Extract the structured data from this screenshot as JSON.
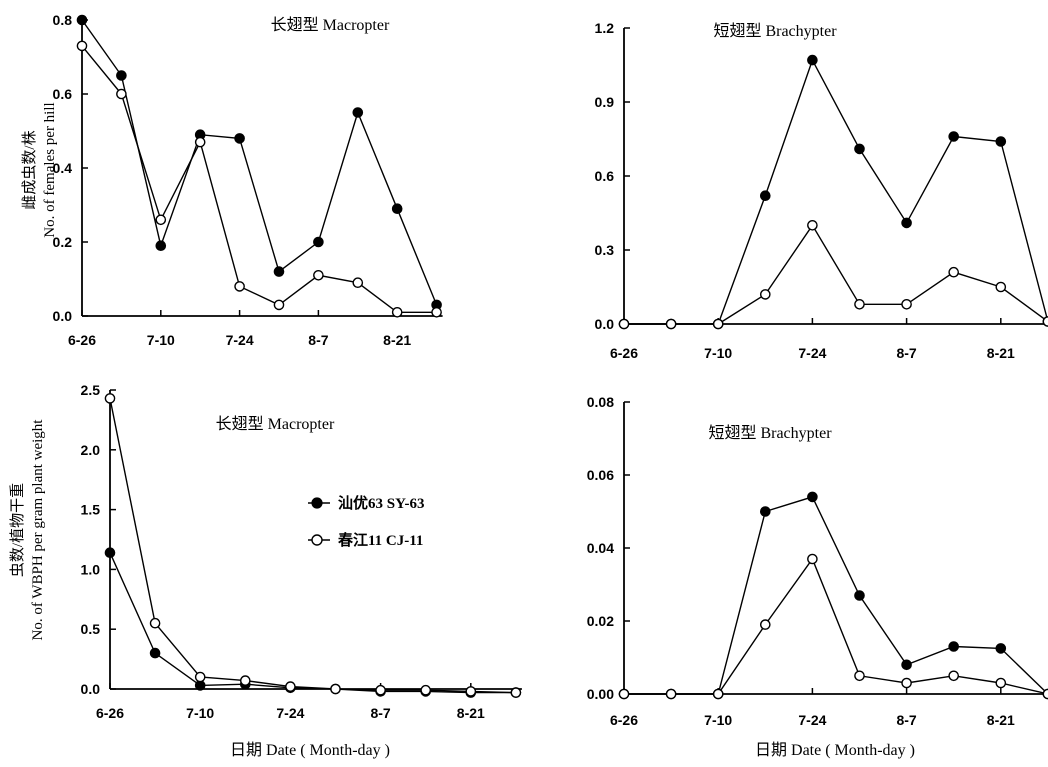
{
  "legend": [
    {
      "label": "汕优63 SY-63",
      "marker": "filled-circle"
    },
    {
      "label": "春江11 CJ-11",
      "marker": "open-circle"
    }
  ],
  "y_labels": {
    "top": [
      "雌成虫数/株",
      "No. of females per hill"
    ],
    "bottom": [
      "虫数/植物干重",
      "No. of WBPH per gram plant weight"
    ]
  },
  "x_labels": {
    "left": "日期 Date ( Month-day )",
    "right": "日期  Date ( Month-day )"
  },
  "chart_data": [
    {
      "type": "line",
      "title": "长翅型  Macropter",
      "x_tick_labels": [
        "6-26",
        "7-10",
        "7-24",
        "8-7",
        "8-21"
      ],
      "y_tick_labels": [
        "0.0",
        "0.2",
        "0.4",
        "0.6",
        "0.8"
      ],
      "ylim": [
        0,
        0.8
      ],
      "x": [
        "6-26",
        "7-3",
        "7-10",
        "7-17",
        "7-24",
        "7-31",
        "8-7",
        "8-14",
        "8-21",
        "8-28"
      ],
      "series": [
        {
          "name": "汕优63 SY-63",
          "marker": "filled",
          "values": [
            0.8,
            0.65,
            0.19,
            0.49,
            0.48,
            0.12,
            0.2,
            0.55,
            0.29,
            0.03
          ]
        },
        {
          "name": "春江11 CJ-11",
          "marker": "open",
          "values": [
            0.73,
            0.6,
            0.26,
            0.47,
            0.08,
            0.03,
            0.11,
            0.09,
            0.01,
            0.01
          ]
        }
      ]
    },
    {
      "type": "line",
      "title": "短翅型  Brachypter",
      "x_tick_labels": [
        "6-26",
        "7-10",
        "7-24",
        "8-7",
        "8-21"
      ],
      "y_tick_labels": [
        "0.0",
        "0.3",
        "0.6",
        "0.9",
        "1.2"
      ],
      "ylim": [
        0,
        1.2
      ],
      "x": [
        "6-26",
        "7-3",
        "7-10",
        "7-17",
        "7-24",
        "7-31",
        "8-7",
        "8-14",
        "8-21",
        "8-28"
      ],
      "series": [
        {
          "name": "汕优63 SY-63",
          "marker": "filled",
          "values": [
            0.0,
            0.0,
            0.0,
            0.52,
            1.07,
            0.71,
            0.41,
            0.76,
            0.74,
            0.01
          ]
        },
        {
          "name": "春江11 CJ-11",
          "marker": "open",
          "values": [
            0.0,
            0.0,
            0.0,
            0.12,
            0.4,
            0.08,
            0.08,
            0.21,
            0.15,
            0.01
          ]
        }
      ]
    },
    {
      "type": "line",
      "title": "长翅型  Macropter",
      "x_tick_labels": [
        "6-26",
        "7-10",
        "7-24",
        "8-7",
        "8-21"
      ],
      "y_tick_labels": [
        "0.0",
        "0.5",
        "1.0",
        "1.5",
        "2.0",
        "2.5"
      ],
      "ylim": [
        0,
        2.5
      ],
      "x": [
        "6-26",
        "7-3",
        "7-10",
        "7-17",
        "7-24",
        "7-31",
        "8-7",
        "8-14",
        "8-21",
        "8-28"
      ],
      "series": [
        {
          "name": "汕优63 SY-63",
          "marker": "filled",
          "values": [
            1.14,
            0.3,
            0.03,
            0.04,
            0.01,
            0.0,
            -0.02,
            -0.02,
            -0.03,
            -0.03
          ]
        },
        {
          "name": "春江11 CJ-11",
          "marker": "open",
          "values": [
            2.43,
            0.55,
            0.1,
            0.07,
            0.02,
            0.0,
            -0.01,
            -0.01,
            -0.02,
            -0.03
          ]
        }
      ]
    },
    {
      "type": "line",
      "title": "短翅型  Brachypter",
      "x_tick_labels": [
        "6-26",
        "7-10",
        "7-24",
        "8-7",
        "8-21"
      ],
      "y_tick_labels": [
        "0.00",
        "0.02",
        "0.04",
        "0.06",
        "0.08"
      ],
      "ylim": [
        0,
        0.08
      ],
      "x": [
        "6-26",
        "7-3",
        "7-10",
        "7-17",
        "7-24",
        "7-31",
        "8-7",
        "8-14",
        "8-21",
        "8-28"
      ],
      "series": [
        {
          "name": "汕优63 SY-63",
          "marker": "filled",
          "values": [
            0.0,
            0.0,
            0.0,
            0.05,
            0.054,
            0.027,
            0.008,
            0.013,
            0.0125,
            0.0
          ]
        },
        {
          "name": "春江11 CJ-11",
          "marker": "open",
          "values": [
            0.0,
            0.0,
            0.0,
            0.019,
            0.037,
            0.005,
            0.003,
            0.005,
            0.003,
            0.0
          ]
        }
      ]
    }
  ]
}
